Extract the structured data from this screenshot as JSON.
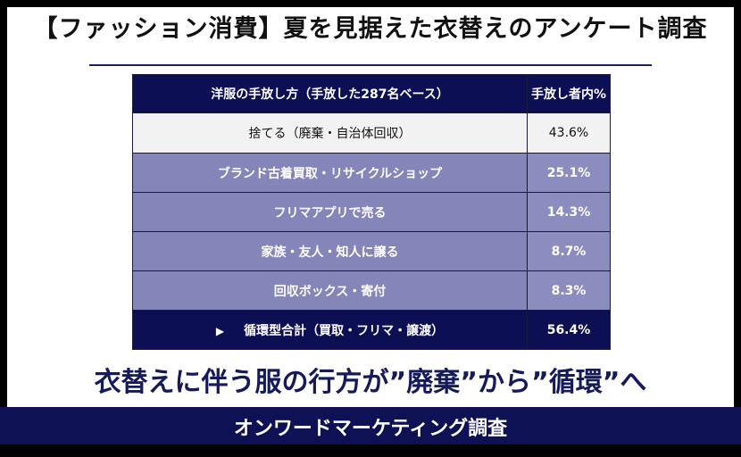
{
  "title": "【ファッション消費】夏を見据えた衣替えのアンケート調査",
  "table": {
    "headers": [
      "洋服の手放し方（手放した287名ベース）",
      "手放し者内%"
    ],
    "rows": [
      {
        "label": "捨てる（廃棄・自治体回収）",
        "value": "43.6%"
      },
      {
        "label": "ブランド古着買取・リサイクルショップ",
        "value": "25.1%"
      },
      {
        "label": "フリマアプリで売る",
        "value": "14.3%"
      },
      {
        "label": "家族・友人・知人に譲る",
        "value": "8.7%"
      },
      {
        "label": "回収ボックス・寄付",
        "value": "8.3%"
      }
    ],
    "total": {
      "marker": "▶",
      "label": "循環型合計（買取・フリマ・譲渡）",
      "value": "56.4%"
    }
  },
  "tagline": "衣替えに伴う服の行方が”廃棄”から”循環”へ",
  "footer": "オンワードマーケティング調査",
  "colors": {
    "navy": "#0c0f54",
    "lavender": "#8485b8",
    "footer": "#0e1254"
  }
}
